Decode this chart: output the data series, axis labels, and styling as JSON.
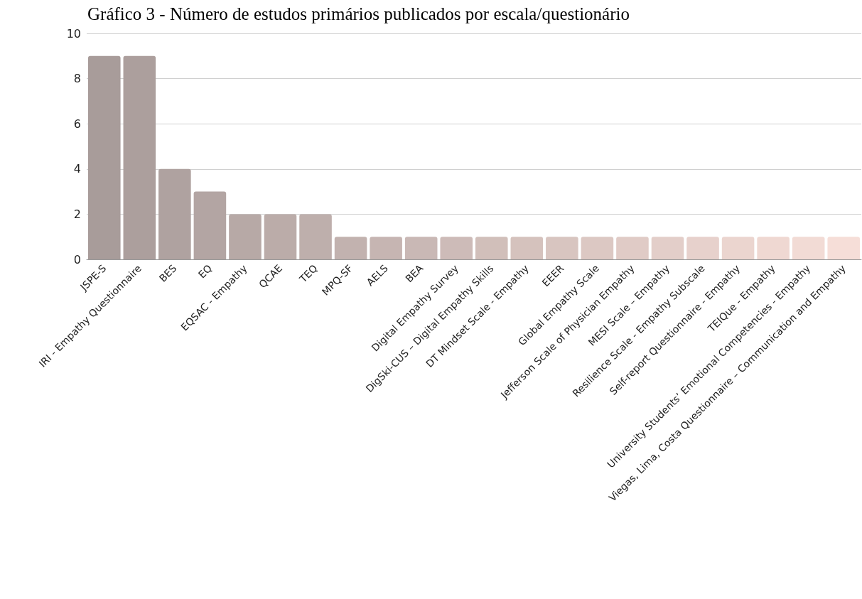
{
  "chart_data": {
    "type": "bar",
    "title": "Gráfico 3 - Número de estudos primários publicados por escala/questionário",
    "categories": [
      "JSPE-S",
      "IRI - Empathy Questionnaire",
      "BES",
      "EQ",
      "EQSAC - Empathy",
      "QCAE",
      "TEQ",
      "MPQ-SF",
      "AELS",
      "BEA",
      "Digital Empathy Survey",
      "DigSki-CUS – Digital Empathy Skills",
      "DT Mindset Scale - Empathy",
      "EEER",
      "Global Empathy Scale",
      "Jefferson Scale of Physician Empathy",
      "MESI Scale – Empathy",
      "Resilience Scale - Empathy Subscale",
      "Self-report Questionnaire - Empathy",
      "TEIQue - Empathy",
      "University Students’ Emotional Competencies - Empathy",
      "Viegas, Lima, Costa Questionnaire – Communication and Empathy"
    ],
    "values": [
      9,
      9,
      4,
      3,
      2,
      2,
      2,
      1,
      1,
      1,
      1,
      1,
      1,
      1,
      1,
      1,
      1,
      1,
      1,
      1,
      1,
      1
    ],
    "colors": [
      "#a89c9a",
      "#ac9f9d",
      "#afa2a0",
      "#b3a5a3",
      "#b7a9a6",
      "#bbaca9",
      "#beafac",
      "#c2b2af",
      "#c6b5b2",
      "#c9b8b5",
      "#cdbbb8",
      "#d1bfba",
      "#d5c2bd",
      "#d8c5c0",
      "#dcc8c3",
      "#e0cbc6",
      "#e3cec9",
      "#e7d1cc",
      "#ebd5cf",
      "#efd8d2",
      "#f2dbd5",
      "#f6ded8"
    ],
    "ylim": [
      0,
      10
    ],
    "yticks": [
      0,
      2,
      4,
      6,
      8,
      10
    ],
    "grid": "y"
  }
}
